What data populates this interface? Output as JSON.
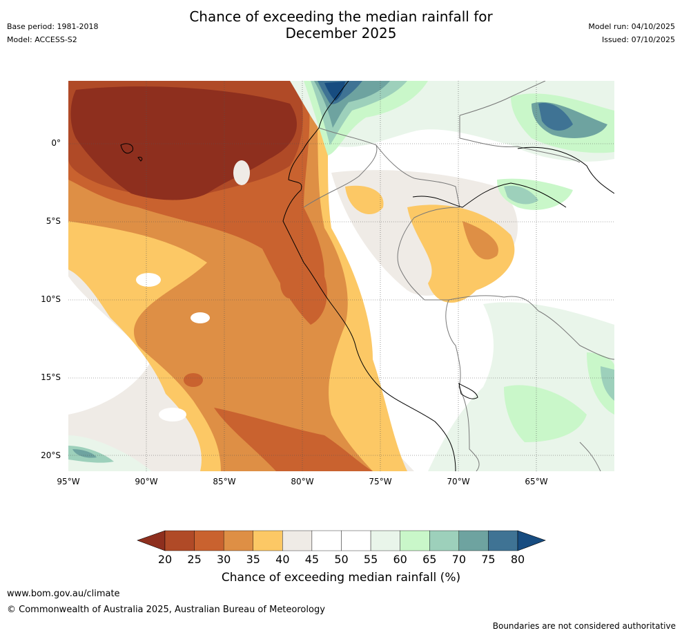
{
  "header": {
    "base_period": "Base period: 1981-2018",
    "model": "Model: ACCESS-S2",
    "title_line1": "Chance of exceeding the median rainfall for",
    "title_line2": "December 2025",
    "model_run": "Model run: 04/10/2025",
    "issued": "Issued: 07/10/2025"
  },
  "map": {
    "lat_labels": [
      "0°",
      "5°S",
      "10°S",
      "15°S",
      "20°S"
    ],
    "lon_labels": [
      "95°W",
      "90°W",
      "85°W",
      "80°W",
      "75°W",
      "70°W",
      "65°W"
    ]
  },
  "colorbar": {
    "title": "Chance of exceeding median rainfall (%)",
    "tick_labels": [
      "20",
      "25",
      "30",
      "35",
      "40",
      "45",
      "50",
      "55",
      "60",
      "65",
      "70",
      "75",
      "80"
    ],
    "colors": [
      "#8e2f1e",
      "#b04a27",
      "#c9622f",
      "#de8f45",
      "#fcc865",
      "#efebe6",
      "#ffffff",
      "#ffffff",
      "#e9f5ea",
      "#c9f7c9",
      "#9dd0bb",
      "#6ea3a0",
      "#3f7394",
      "#174c80"
    ]
  },
  "footer": {
    "url": "www.bom.gov.au/climate",
    "copyright": "© Commonwealth of Australia 2025, Australian Bureau of Meteorology",
    "disclaimer": "Boundaries are not considered authoritative"
  }
}
